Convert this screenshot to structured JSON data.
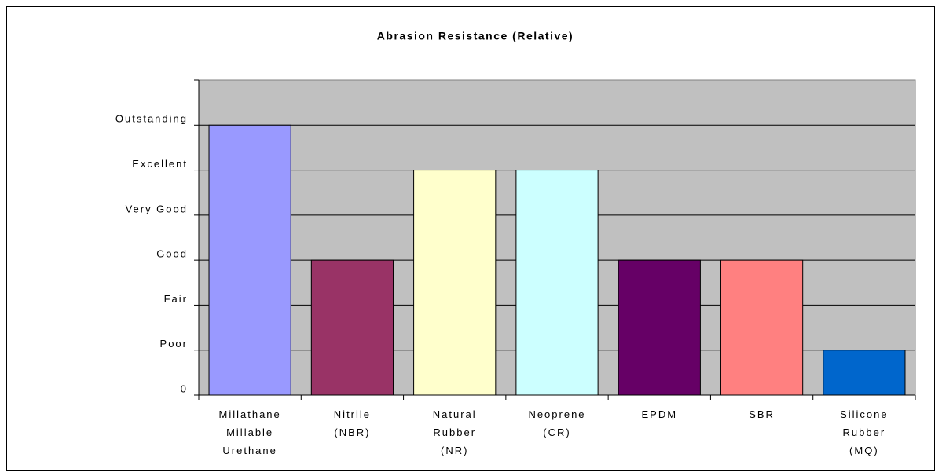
{
  "chart_data": {
    "type": "bar",
    "title": "Abrasion Resistance (Relative)",
    "categories": [
      [
        "Millathane",
        "Millable",
        "Urethane"
      ],
      [
        "Nitrile",
        "(NBR)"
      ],
      [
        "Natural",
        "Rubber",
        "(NR)"
      ],
      [
        "Neoprene",
        "(CR)"
      ],
      [
        "EPDM"
      ],
      [
        "SBR"
      ],
      [
        "Silicone",
        "Rubber",
        "(MQ)"
      ]
    ],
    "values": [
      6,
      3,
      5,
      5,
      3,
      3,
      1
    ],
    "colors": [
      "#9999ff",
      "#993366",
      "#ffffcc",
      "#ccffff",
      "#660066",
      "#ff8080",
      "#0066cc"
    ],
    "ylim": [
      0,
      7
    ],
    "yticks": [
      0,
      {
        "value": 1,
        "label": "Poor"
      },
      {
        "value": 2,
        "label": "Fair"
      },
      {
        "value": 3,
        "label": "Good"
      },
      {
        "value": 4,
        "label": "Very Good"
      },
      {
        "value": 5,
        "label": "Excellent"
      },
      {
        "value": 6,
        "label": "Outstanding"
      }
    ],
    "grid": true
  }
}
